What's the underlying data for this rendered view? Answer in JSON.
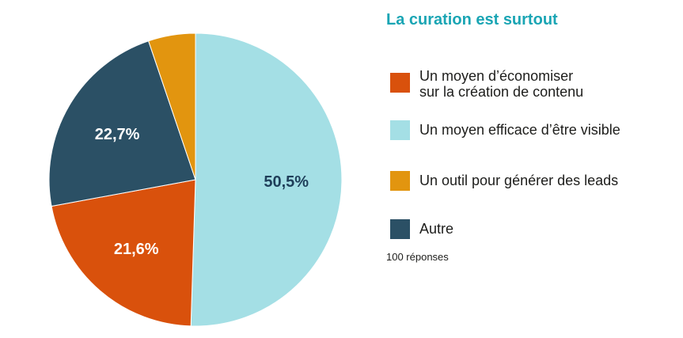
{
  "chart_data": {
    "type": "pie",
    "title": "La curation est surtout",
    "note": "100 réponses",
    "slices": [
      {
        "label": "Un moyen efficace d’être visible",
        "value": 50.5,
        "value_label": "50,5%",
        "color": "#a4dfe5",
        "label_color": "#1f3f5a"
      },
      {
        "label": "Un moyen d’économiser\nsur la création de contenu",
        "value": 21.6,
        "value_label": "21,6%",
        "color": "#d9510c",
        "label_color": "#ffffff"
      },
      {
        "label": "Autre",
        "value": 22.7,
        "value_label": "22,7%",
        "color": "#2b5065",
        "label_color": "#ffffff"
      },
      {
        "label": "Un outil pour générer des leads",
        "value": 5.2,
        "value_label": "",
        "color": "#e2950f",
        "label_color": "#ffffff"
      }
    ],
    "legend_order": [
      1,
      0,
      3,
      2
    ],
    "legend_placement": "right"
  }
}
